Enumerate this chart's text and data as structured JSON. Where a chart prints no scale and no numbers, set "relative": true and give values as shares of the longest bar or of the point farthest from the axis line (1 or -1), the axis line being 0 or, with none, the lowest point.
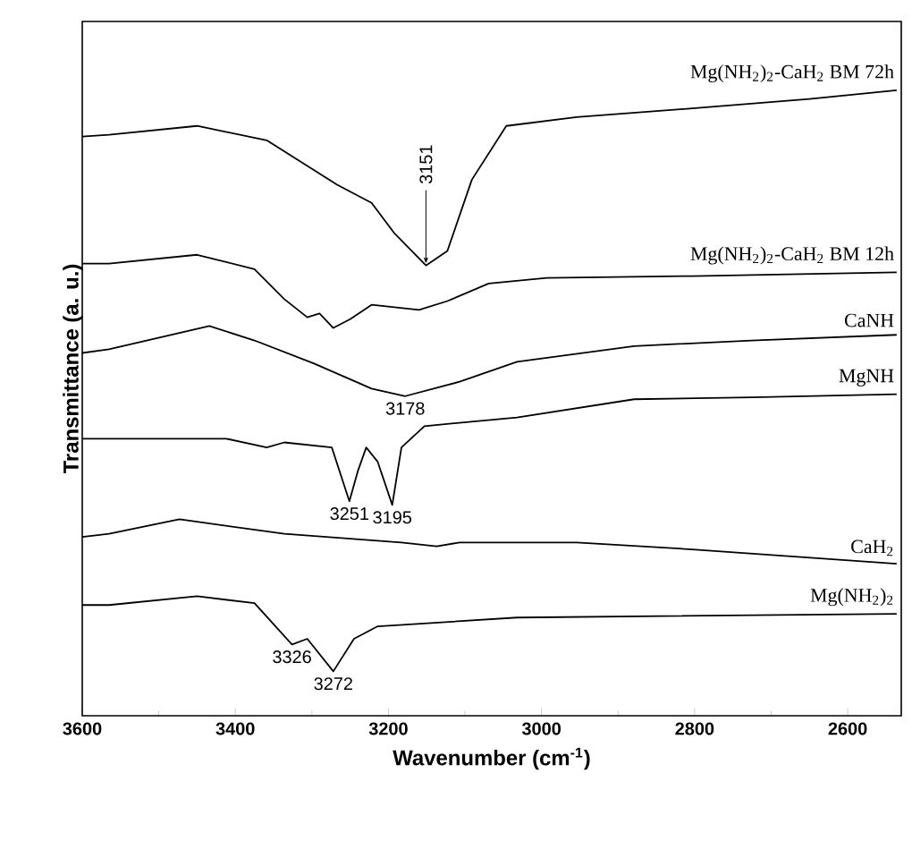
{
  "chart_data": {
    "type": "line",
    "relative": true,
    "xlabel": "Wavenumber (cm$^{-1}$)",
    "ylabel": "Transmittance (a. u.)",
    "xlim": [
      3600,
      2530
    ],
    "xticks": [
      3600,
      3400,
      3200,
      3000,
      2800,
      2600
    ],
    "legend": false,
    "series": [
      {
        "name": "Mg(NH$_{2}$)$_{2}$-CaH$_{2}$ BM 72h",
        "color": "#000000",
        "x": [
          3600,
          3565,
          3450,
          3359,
          3267,
          3222,
          3192,
          3151,
          3123,
          3091,
          3046,
          2954,
          2803,
          2650,
          2536
        ],
        "values": [
          0.926,
          0.929,
          0.943,
          0.92,
          0.849,
          0.82,
          0.771,
          0.72,
          0.743,
          0.857,
          0.943,
          0.957,
          0.971,
          0.986,
          1.0
        ]
      },
      {
        "name": "Mg(NH$_{2}$)$_{2}$-CaH$_{2}$ BM 12h",
        "color": "#000000",
        "x": [
          3600,
          3565,
          3450,
          3375,
          3336,
          3306,
          3290,
          3272,
          3250,
          3222,
          3160,
          3123,
          3069,
          2993,
          2803,
          2536
        ],
        "values": [
          0.723,
          0.723,
          0.737,
          0.714,
          0.666,
          0.637,
          0.643,
          0.62,
          0.634,
          0.657,
          0.649,
          0.663,
          0.691,
          0.7,
          0.703,
          0.709
        ]
      },
      {
        "name": "CaNH",
        "color": "#000000",
        "x": [
          3600,
          3565,
          3434,
          3375,
          3297,
          3222,
          3178,
          3107,
          3032,
          2879,
          2726,
          2536
        ],
        "values": [
          0.58,
          0.586,
          0.623,
          0.6,
          0.563,
          0.523,
          0.511,
          0.534,
          0.566,
          0.591,
          0.6,
          0.609
        ]
      },
      {
        "name": "MgNH",
        "color": "#000000",
        "x": [
          3600,
          3565,
          3412,
          3359,
          3336,
          3274,
          3251,
          3240,
          3229,
          3214,
          3195,
          3183,
          3153,
          3032,
          2879,
          2726,
          2536
        ],
        "values": [
          0.443,
          0.443,
          0.443,
          0.429,
          0.437,
          0.429,
          0.343,
          0.391,
          0.429,
          0.406,
          0.337,
          0.429,
          0.463,
          0.477,
          0.506,
          0.509,
          0.514
        ]
      },
      {
        "name": "CaH$_{2}$",
        "color": "#000000",
        "x": [
          3600,
          3565,
          3473,
          3336,
          3183,
          3137,
          3107,
          2954,
          2803,
          2536
        ],
        "values": [
          0.286,
          0.291,
          0.314,
          0.291,
          0.277,
          0.271,
          0.277,
          0.277,
          0.266,
          0.243
        ]
      },
      {
        "name": "Mg(NH$_{2}$)$_{2}$",
        "color": "#000000",
        "x": [
          3600,
          3565,
          3450,
          3375,
          3326,
          3306,
          3272,
          3245,
          3214,
          3032,
          2536
        ],
        "values": [
          0.177,
          0.177,
          0.191,
          0.18,
          0.114,
          0.123,
          0.071,
          0.123,
          0.143,
          0.157,
          0.163
        ]
      }
    ],
    "annotations": [
      {
        "text": "3151",
        "x": 3151,
        "y": 0.72
      },
      {
        "text": "3178",
        "x": 3178,
        "y": 0.511
      },
      {
        "text": "3251",
        "x": 3251,
        "y": 0.343
      },
      {
        "text": "3195",
        "x": 3195,
        "y": 0.337
      },
      {
        "text": "3326",
        "x": 3326,
        "y": 0.114
      },
      {
        "text": "3272",
        "x": 3272,
        "y": 0.071
      }
    ]
  }
}
